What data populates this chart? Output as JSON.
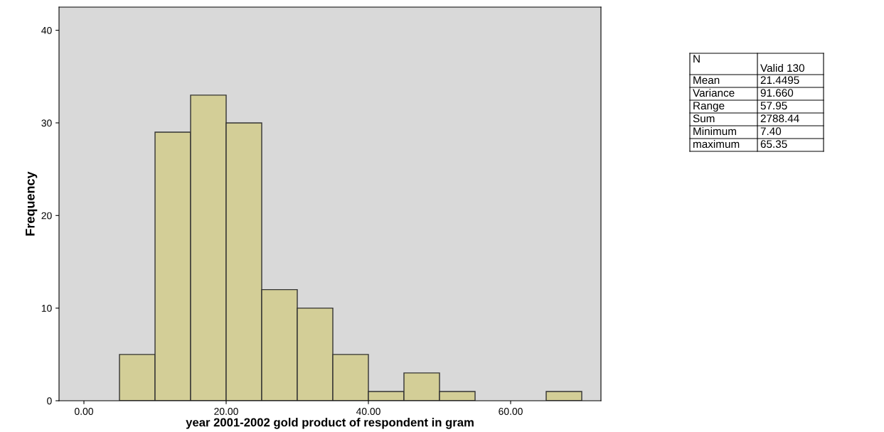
{
  "chart_data": {
    "type": "histogram",
    "xlabel": "year 2001-2002 gold product of respondent in gram",
    "ylabel": "Frequency",
    "bins": [
      5,
      10,
      15,
      20,
      25,
      30,
      35,
      40,
      45,
      50,
      55,
      60,
      65,
      70
    ],
    "values": [
      5,
      29,
      33,
      30,
      12,
      10,
      5,
      1,
      3,
      1,
      0,
      0,
      1
    ],
    "color": "#d3ce97",
    "xlim": [
      -3.5,
      72.7
    ],
    "xticks": [
      {
        "value": 0,
        "label": "0.00"
      },
      {
        "value": 20,
        "label": "20.00"
      },
      {
        "value": 40,
        "label": "40.00"
      },
      {
        "value": 60,
        "label": "60.00"
      }
    ],
    "ylim": [
      0,
      42.5
    ],
    "yticks": [
      0,
      10,
      20,
      30,
      40
    ],
    "grid": false,
    "annotations": [
      "N",
      "Valid 130",
      "Mean",
      "21.4495",
      "Variance",
      "91.660",
      "Range",
      "57.95",
      "Sum",
      "2788.44",
      "Minimum",
      "7.40",
      "maximum",
      "65.35"
    ]
  }
}
